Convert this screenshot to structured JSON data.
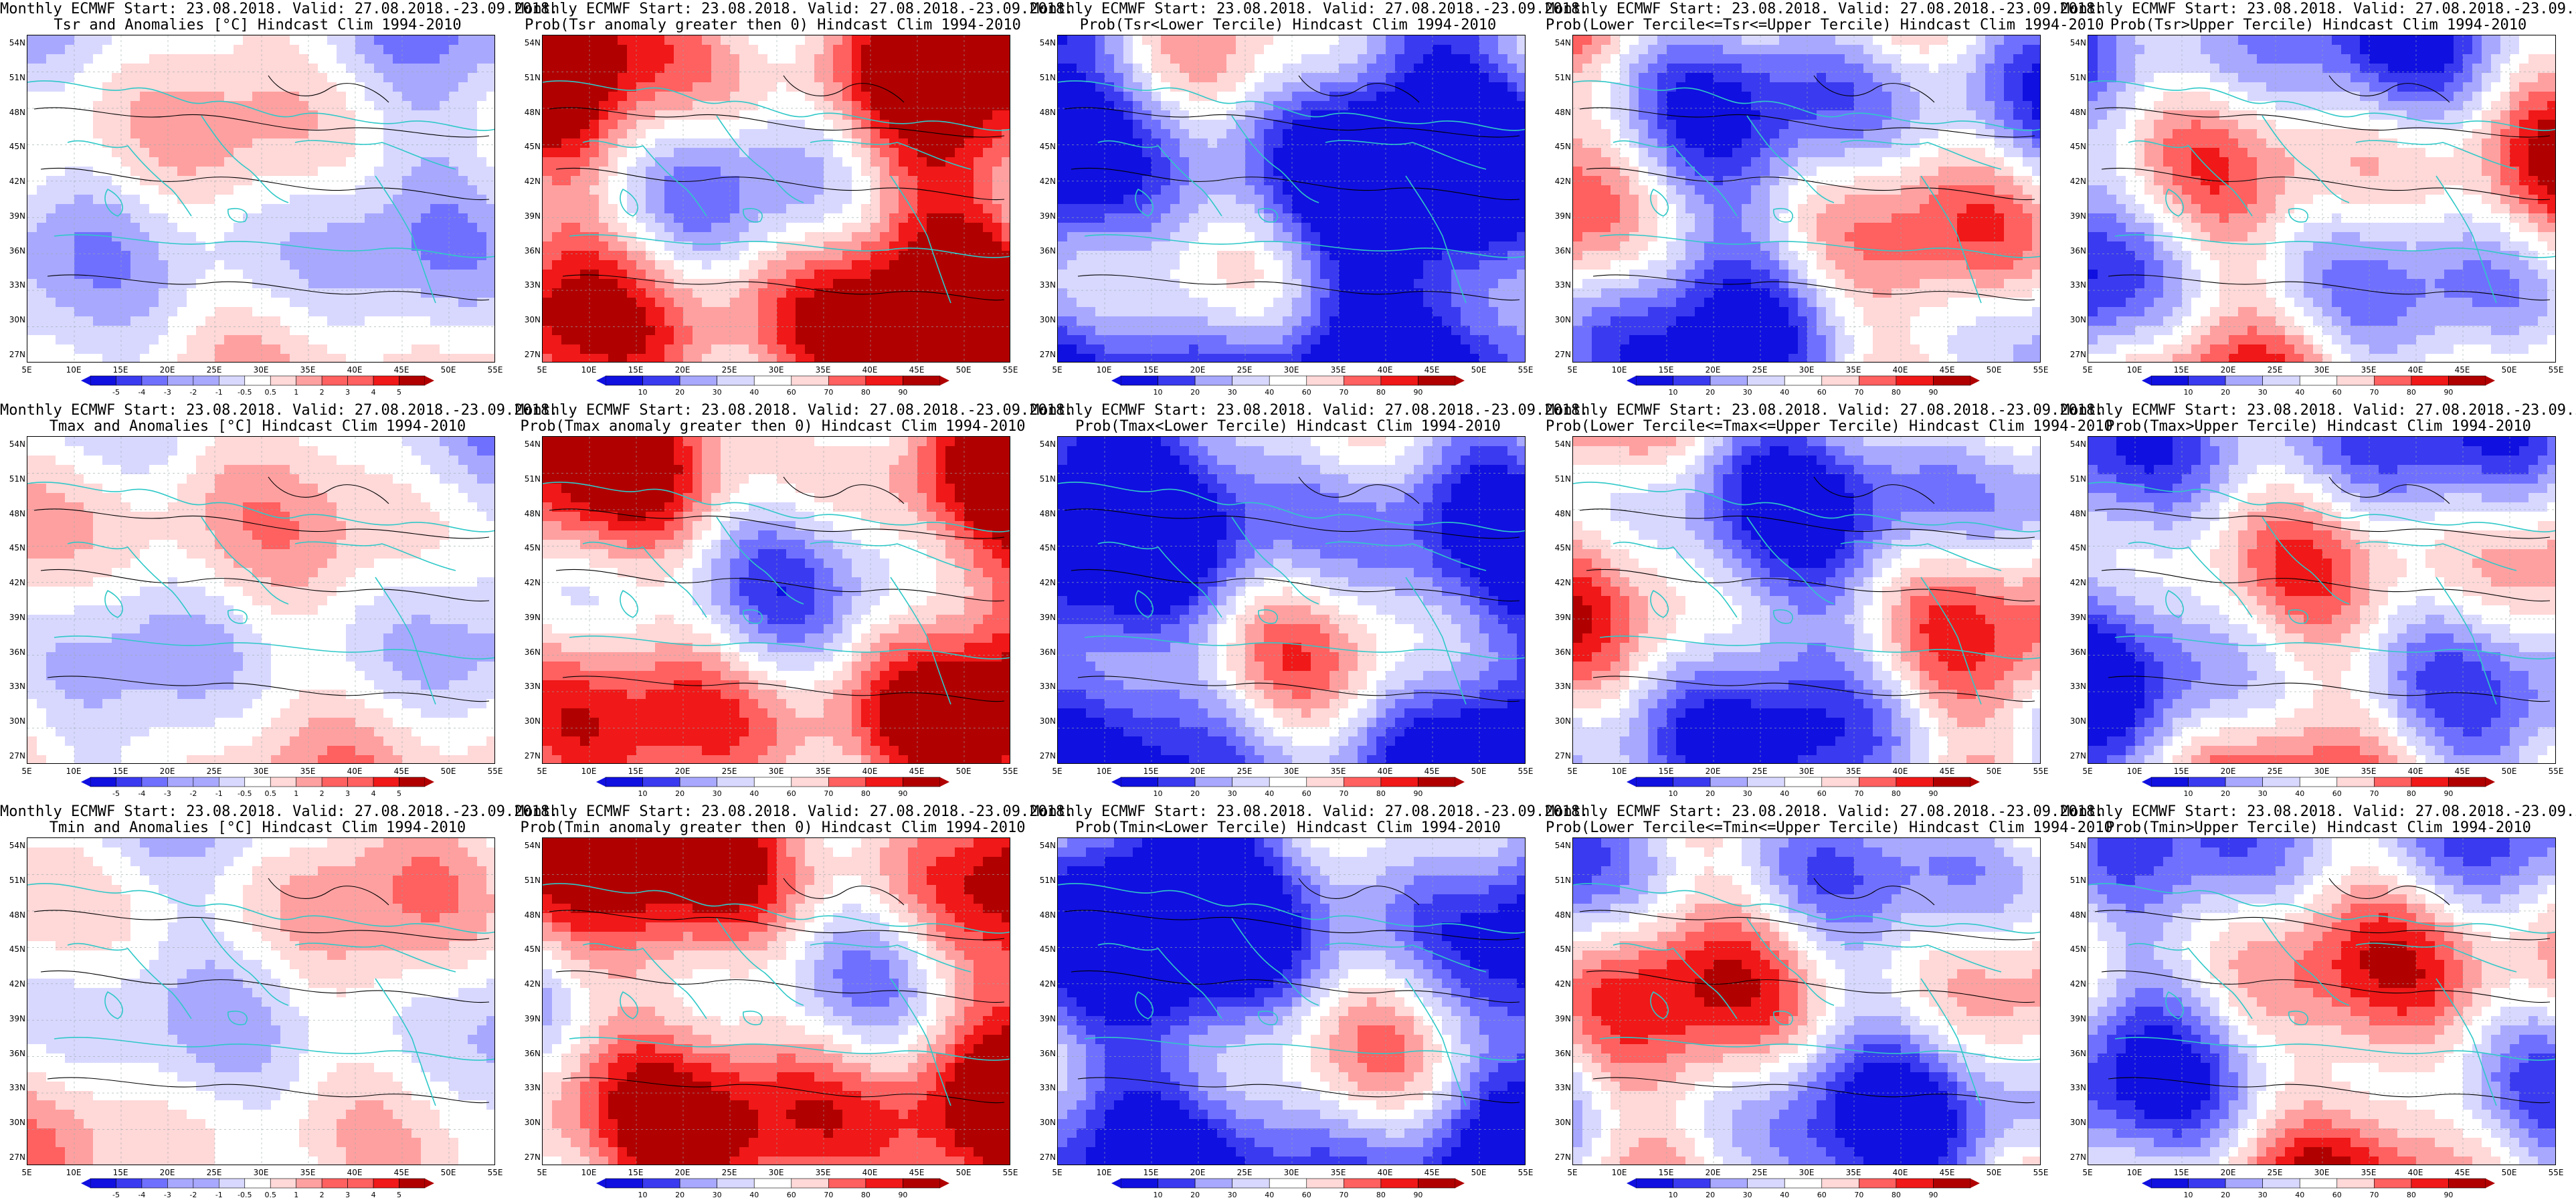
{
  "figure": {
    "title_line1": "Monthly ECMWF Start: 23.08.2018. Valid: 27.08.2018.-23.09.2018.",
    "lat_labels": [
      "54N",
      "51N",
      "48N",
      "45N",
      "42N",
      "39N",
      "36N",
      "33N",
      "30N",
      "27N"
    ],
    "lon_labels": [
      "5E",
      "10E",
      "15E",
      "20E",
      "25E",
      "30E",
      "35E",
      "40E",
      "45E",
      "50E",
      "55E"
    ],
    "anomaly_colorbar_labels": [
      "-5",
      "-4",
      "-3",
      "-2",
      "-1",
      "-0.5",
      "0.5",
      "1",
      "2",
      "3",
      "4",
      "5"
    ],
    "prob_colorbar_labels": [
      "10",
      "20",
      "30",
      "40",
      "60",
      "70",
      "80",
      "90"
    ],
    "panels": [
      {
        "id": "tsr-anom",
        "kind": "anomaly",
        "row": 0,
        "col": 0,
        "title": "Tsr and Anomalies [°C] Hindcast Clim 1994-2010",
        "bias": 0.15
      },
      {
        "id": "tsr-pos",
        "kind": "prob",
        "row": 0,
        "col": 1,
        "title": "Prob(Tsr anomaly greater then 0) Hindcast Clim 1994-2010",
        "bias": 0.45
      },
      {
        "id": "tsr-lower",
        "kind": "prob",
        "row": 0,
        "col": 2,
        "title": "Prob(Tsr<Lower Tercile) Hindcast Clim 1994-2010",
        "bias": -0.75
      },
      {
        "id": "tsr-mid",
        "kind": "prob",
        "row": 0,
        "col": 3,
        "title": "Prob(Lower Tercile<=Tsr<=Upper Tercile) Hindcast Clim 1994-2010",
        "bias": -0.1
      },
      {
        "id": "tsr-upper",
        "kind": "prob",
        "row": 0,
        "col": 4,
        "title": "Prob(Tsr>Upper Tercile) Hindcast Clim 1994-2010",
        "bias": -0.05
      },
      {
        "id": "tmax-anom",
        "kind": "anomaly",
        "row": 1,
        "col": 0,
        "title": "Tmax and Anomalies [°C] Hindcast Clim 1994-2010",
        "bias": 0.3
      },
      {
        "id": "tmax-pos",
        "kind": "prob",
        "row": 1,
        "col": 1,
        "title": "Prob(Tmax anomaly greater then 0) Hindcast Clim 1994-2010",
        "bias": 0.3
      },
      {
        "id": "tmax-lower",
        "kind": "prob",
        "row": 1,
        "col": 2,
        "title": "Prob(Tmax<Lower Tercile) Hindcast Clim 1994-2010",
        "bias": -0.6
      },
      {
        "id": "tmax-mid",
        "kind": "prob",
        "row": 1,
        "col": 3,
        "title": "Prob(Lower Tercile<=Tmax<=Upper Tercile) Hindcast Clim 1994-2010",
        "bias": -0.15
      },
      {
        "id": "tmax-upper",
        "kind": "prob",
        "row": 1,
        "col": 4,
        "title": "Prob(Tmax>Upper Tercile) Hindcast Clim 1994-2010",
        "bias": -0.1
      },
      {
        "id": "tmin-anom",
        "kind": "anomaly",
        "row": 2,
        "col": 0,
        "title": "Tmin and Anomalies [°C] Hindcast Clim 1994-2010",
        "bias": 0.1
      },
      {
        "id": "tmin-pos",
        "kind": "prob",
        "row": 2,
        "col": 1,
        "title": "Prob(Tmin anomaly greater then 0) Hindcast Clim 1994-2010",
        "bias": 0.5
      },
      {
        "id": "tmin-lower",
        "kind": "prob",
        "row": 2,
        "col": 2,
        "title": "Prob(Tmin<Lower Tercile) Hindcast Clim 1994-2010",
        "bias": -0.7
      },
      {
        "id": "tmin-mid",
        "kind": "prob",
        "row": 2,
        "col": 3,
        "title": "Prob(Lower Tercile<=Tmin<=Upper Tercile) Hindcast Clim 1994-2010",
        "bias": -0.1
      },
      {
        "id": "tmin-upper",
        "kind": "prob",
        "row": 2,
        "col": 4,
        "title": "Prob(Tmin>Upper Tercile) Hindcast Clim 1994-2010",
        "bias": 0.05
      }
    ],
    "colors": {
      "ramp": [
        "#1010e0",
        "#3a3af0",
        "#7070ff",
        "#a8a8ff",
        "#d8d8ff",
        "#ffffff",
        "#ffd8d8",
        "#ffa0a0",
        "#ff6060",
        "#f01818",
        "#b00000"
      ],
      "coast": "#30c8c8",
      "contour": "#000000"
    }
  }
}
